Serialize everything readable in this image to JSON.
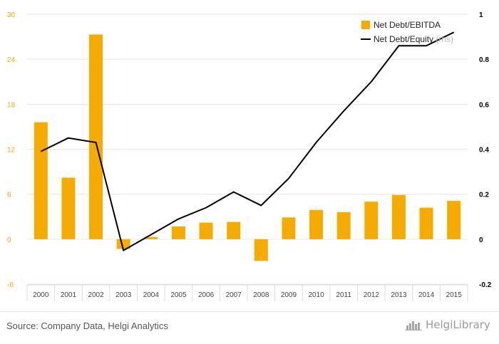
{
  "footer": {
    "source": "Source: Company Data, Helgi Analytics",
    "brand": "HelgiLibrary"
  },
  "colors": {
    "bar": "#f5ab00",
    "line": "#000000",
    "left_ticks": "#f5ab00",
    "right_ticks": "#000000"
  },
  "chart_data": {
    "type": "bar",
    "categories": [
      "2000",
      "2001",
      "2002",
      "2003",
      "2004",
      "2005",
      "2006",
      "2007",
      "2008",
      "2009",
      "2010",
      "2011",
      "2012",
      "2013",
      "2014",
      "2015"
    ],
    "series": [
      {
        "name": "Net Debt/EBITDA",
        "type": "bar",
        "axis": "left",
        "values": [
          15.6,
          8.2,
          27.3,
          -1.3,
          0.3,
          1.7,
          2.2,
          2.3,
          -2.9,
          2.9,
          3.9,
          3.6,
          5.0,
          5.9,
          4.2,
          5.1
        ]
      },
      {
        "name": "Net Debt/Equity",
        "legend_suffix": "(rhs)",
        "type": "line",
        "axis": "right",
        "values": [
          0.39,
          0.45,
          0.43,
          -0.05,
          0.02,
          0.09,
          0.14,
          0.21,
          0.15,
          0.27,
          0.43,
          0.57,
          0.7,
          0.86,
          0.86,
          0.92
        ]
      }
    ],
    "y_left": {
      "min": -6,
      "max": 30,
      "ticks": [
        "-6",
        "0",
        "6",
        "12",
        "18",
        "24",
        "30"
      ]
    },
    "y_right": {
      "min": -0.2,
      "max": 1.0,
      "ticks": [
        "-0.2",
        "0",
        "0.2",
        "0.4",
        "0.6",
        "0.8",
        "1"
      ]
    },
    "grid": true,
    "legend_position": "top-right"
  }
}
